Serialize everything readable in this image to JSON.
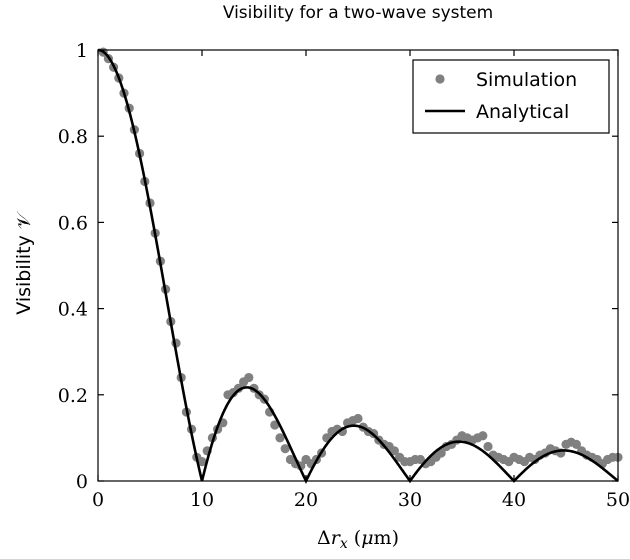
{
  "chart_data": {
    "type": "scatter",
    "title": "Visibility for a two-wave system",
    "xlabel": "Δr_x (μm)",
    "ylabel": "Visibility 𝒱",
    "xlim": [
      0,
      50
    ],
    "ylim": [
      0,
      1
    ],
    "xticks": [
      "0",
      "10",
      "20",
      "30",
      "40",
      "50"
    ],
    "yticks": [
      "0",
      "0.2",
      "0.4",
      "0.6",
      "0.8",
      "1"
    ],
    "grid": false,
    "legend_position": "top-right",
    "series": [
      {
        "name": "Simulation",
        "style": "markers",
        "color": "#808080",
        "x": [
          0.5,
          1,
          1.5,
          2,
          2.5,
          3,
          3.5,
          4,
          4.5,
          5,
          5.5,
          6,
          6.5,
          7,
          7.5,
          8,
          8.5,
          9,
          9.5,
          10,
          10.5,
          11,
          11.5,
          12,
          12.5,
          13,
          13.5,
          14,
          14.5,
          15,
          15.5,
          16,
          16.5,
          17,
          17.5,
          18,
          18.5,
          19,
          19.5,
          20,
          20.5,
          21,
          21.5,
          22,
          22.5,
          23,
          23.5,
          24,
          24.5,
          25,
          25.5,
          26,
          26.5,
          27,
          27.5,
          28,
          28.5,
          29,
          29.5,
          30,
          30.5,
          31,
          31.5,
          32,
          32.5,
          33,
          33.5,
          34,
          34.5,
          35,
          35.5,
          36,
          36.5,
          37,
          37.5,
          38,
          38.5,
          39,
          39.5,
          40,
          40.5,
          41,
          41.5,
          42,
          42.5,
          43,
          43.5,
          44,
          44.5,
          45,
          45.5,
          46,
          46.5,
          47,
          47.5,
          48,
          48.5,
          49,
          49.5,
          50
        ],
        "y": [
          0.995,
          0.98,
          0.96,
          0.935,
          0.9,
          0.865,
          0.815,
          0.76,
          0.695,
          0.645,
          0.575,
          0.51,
          0.445,
          0.37,
          0.32,
          0.24,
          0.16,
          0.12,
          0.055,
          0.045,
          0.07,
          0.1,
          0.12,
          0.135,
          0.2,
          0.205,
          0.215,
          0.23,
          0.24,
          0.215,
          0.2,
          0.19,
          0.16,
          0.13,
          0.1,
          0.075,
          0.05,
          0.04,
          0.035,
          0.05,
          0.04,
          0.05,
          0.065,
          0.1,
          0.115,
          0.12,
          0.115,
          0.135,
          0.14,
          0.145,
          0.125,
          0.115,
          0.11,
          0.095,
          0.085,
          0.08,
          0.07,
          0.055,
          0.045,
          0.045,
          0.05,
          0.05,
          0.04,
          0.045,
          0.055,
          0.065,
          0.08,
          0.085,
          0.095,
          0.105,
          0.1,
          0.095,
          0.1,
          0.105,
          0.08,
          0.06,
          0.055,
          0.05,
          0.045,
          0.055,
          0.05,
          0.045,
          0.055,
          0.05,
          0.06,
          0.065,
          0.075,
          0.07,
          0.065,
          0.085,
          0.09,
          0.085,
          0.07,
          0.06,
          0.055,
          0.05,
          0.04,
          0.05,
          0.055,
          0.055
        ]
      },
      {
        "name": "Analytical",
        "style": "line",
        "color": "#000000",
        "formula": "|sin(π·x/10)/(π·x/10)|"
      }
    ]
  }
}
